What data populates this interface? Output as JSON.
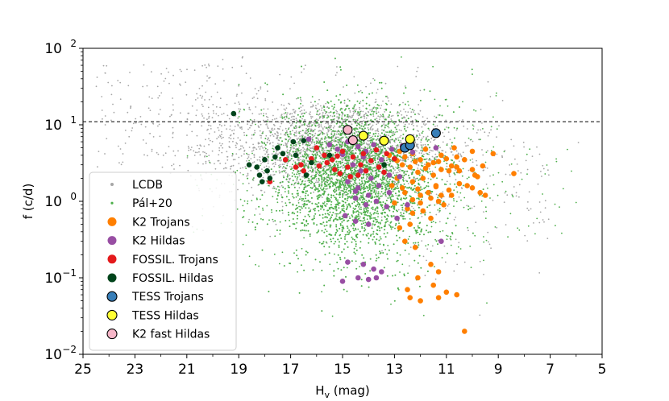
{
  "chart_data": {
    "type": "scatter",
    "title": "",
    "xlabel": "H",
    "xlabel_sub": "v",
    "xlabel_unit": " (mag)",
    "ylabel": "f (c/d)",
    "x_inverted": true,
    "xlim": [
      25,
      5
    ],
    "ylim": [
      0.01,
      100
    ],
    "yscale": "log",
    "grid": false,
    "x_ticks": [
      {
        "value": 25,
        "label": "25"
      },
      {
        "value": 23,
        "label": "23"
      },
      {
        "value": 21,
        "label": "21"
      },
      {
        "value": 19,
        "label": "19"
      },
      {
        "value": 17,
        "label": "17"
      },
      {
        "value": 15,
        "label": "15"
      },
      {
        "value": 13,
        "label": "13"
      },
      {
        "value": 11,
        "label": "11"
      },
      {
        "value": 9,
        "label": "9"
      },
      {
        "value": 7,
        "label": "7"
      },
      {
        "value": 5,
        "label": "5"
      }
    ],
    "y_ticks": [
      {
        "value": 0.01,
        "base": "10",
        "exp": "−2"
      },
      {
        "value": 0.1,
        "base": "10",
        "exp": "−1"
      },
      {
        "value": 1,
        "base": "10",
        "exp": "0"
      },
      {
        "value": 10,
        "base": "10",
        "exp": "1"
      },
      {
        "value": 100,
        "base": "10",
        "exp": "2"
      }
    ],
    "reference_line": {
      "y": 11,
      "style": "dashed",
      "color": "#000000"
    },
    "legend_position": "lower-left",
    "background_series": [
      {
        "name": "LCDB",
        "color": "#a6a6a6",
        "note": "dense gray cloud, peak near Hv 14-16, f ~ 1-10 c/d"
      },
      {
        "name": "Pál+20",
        "color": "#4daf4a",
        "note": "dense green cloud, Hv 12-18, f ~ 0.03-10 c/d"
      }
    ],
    "series": [
      {
        "name": "K2 Trojans",
        "color": "#ff7f00",
        "edge": "none",
        "points": [
          [
            12.8,
            4.5
          ],
          [
            12.6,
            3.8
          ],
          [
            12.3,
            4.2
          ],
          [
            12.0,
            3.5
          ],
          [
            11.8,
            4.8
          ],
          [
            11.5,
            3.2
          ],
          [
            11.2,
            4.0
          ],
          [
            11.0,
            3.6
          ],
          [
            10.6,
            3.8
          ],
          [
            10.3,
            3.5
          ],
          [
            10.0,
            2.6
          ],
          [
            9.6,
            2.9
          ],
          [
            9.2,
            4.2
          ],
          [
            8.4,
            2.3
          ],
          [
            12.7,
            3.0
          ],
          [
            12.4,
            2.8
          ],
          [
            12.1,
            2.4
          ],
          [
            11.8,
            2.7
          ],
          [
            11.5,
            2.2
          ],
          [
            11.2,
            2.6
          ],
          [
            10.9,
            2.5
          ],
          [
            10.6,
            2.8
          ],
          [
            12.9,
            2.0
          ],
          [
            12.3,
            1.8
          ],
          [
            11.9,
            2.0
          ],
          [
            11.4,
            1.6
          ],
          [
            10.9,
            1.4
          ],
          [
            10.5,
            1.7
          ],
          [
            10.0,
            1.5
          ],
          [
            9.7,
            1.3
          ],
          [
            9.5,
            1.2
          ],
          [
            12.6,
            1.3
          ],
          [
            12.0,
            1.2
          ],
          [
            11.6,
            1.1
          ],
          [
            11.3,
            1.0
          ],
          [
            13.0,
            0.95
          ],
          [
            12.5,
            0.8
          ],
          [
            12.3,
            0.7
          ],
          [
            11.9,
            0.75
          ],
          [
            11.6,
            0.6
          ],
          [
            12.8,
            0.45
          ],
          [
            12.4,
            0.5
          ],
          [
            12.6,
            0.3
          ],
          [
            12.2,
            0.25
          ],
          [
            11.6,
            0.15
          ],
          [
            11.3,
            0.12
          ],
          [
            12.1,
            0.1
          ],
          [
            11.5,
            0.08
          ],
          [
            11.0,
            0.065
          ],
          [
            10.6,
            0.06
          ],
          [
            12.5,
            0.07
          ],
          [
            12.0,
            0.05
          ],
          [
            12.4,
            0.055
          ],
          [
            11.3,
            0.055
          ],
          [
            10.3,
            0.02
          ],
          [
            13.1,
            1.6
          ],
          [
            12.9,
            3.4
          ],
          [
            12.2,
            3.3
          ],
          [
            11.7,
            3.0
          ],
          [
            11.3,
            3.3
          ],
          [
            10.8,
            2.9
          ],
          [
            10.5,
            2.5
          ],
          [
            10.2,
            1.6
          ],
          [
            9.9,
            2.2
          ],
          [
            12.7,
            1.5
          ],
          [
            12.1,
            1.45
          ],
          [
            11.4,
            1.55
          ],
          [
            13.2,
            4.0
          ],
          [
            12.5,
            5.2
          ],
          [
            10.7,
            5.0
          ],
          [
            10.0,
            4.5
          ],
          [
            9.8,
            2.1
          ],
          [
            11.2,
            1.2
          ],
          [
            11.7,
            1.3
          ],
          [
            12.3,
            1.05
          ],
          [
            12.0,
            0.95
          ],
          [
            11.1,
            0.9
          ],
          [
            10.8,
            1.2
          ]
        ]
      },
      {
        "name": "K2 Hildas",
        "color": "#984ea3",
        "edge": "none",
        "points": [
          [
            16.3,
            6.5
          ],
          [
            15.5,
            5.5
          ],
          [
            15.2,
            4.8
          ],
          [
            14.8,
            6.0
          ],
          [
            14.4,
            5.2
          ],
          [
            14.1,
            4.5
          ],
          [
            13.8,
            5.5
          ],
          [
            13.5,
            3.5
          ],
          [
            13.1,
            4.8
          ],
          [
            12.7,
            5.3
          ],
          [
            12.3,
            4.4
          ],
          [
            11.4,
            5.0
          ],
          [
            14.6,
            3.0
          ],
          [
            14.3,
            2.5
          ],
          [
            13.9,
            2.0
          ],
          [
            13.6,
            2.8
          ],
          [
            14.8,
            1.8
          ],
          [
            14.4,
            1.5
          ],
          [
            14.0,
            1.2
          ],
          [
            13.6,
            1.6
          ],
          [
            13.2,
            1.3
          ],
          [
            14.5,
            1.1
          ],
          [
            14.1,
            0.9
          ],
          [
            13.7,
            1.0
          ],
          [
            13.3,
            0.85
          ],
          [
            12.9,
            0.6
          ],
          [
            14.9,
            0.65
          ],
          [
            14.5,
            0.55
          ],
          [
            14.0,
            0.5
          ],
          [
            12.5,
            0.9
          ],
          [
            11.2,
            0.3
          ],
          [
            14.8,
            0.16
          ],
          [
            14.2,
            0.15
          ],
          [
            13.8,
            0.13
          ],
          [
            13.5,
            0.12
          ],
          [
            14.4,
            0.1
          ],
          [
            14.0,
            0.095
          ],
          [
            15.0,
            0.09
          ],
          [
            13.7,
            0.1
          ],
          [
            14.5,
            1.35
          ],
          [
            13.2,
            2.2
          ],
          [
            12.8,
            2.1
          ],
          [
            14.2,
            3.8
          ],
          [
            15.0,
            4.1
          ]
        ]
      },
      {
        "name": "FOSSIL. Trojans",
        "color": "#e41a1c",
        "edge": "none",
        "points": [
          [
            17.8,
            1.8
          ],
          [
            17.2,
            3.5
          ],
          [
            16.8,
            2.8
          ],
          [
            16.5,
            2.5
          ],
          [
            16.2,
            3.6
          ],
          [
            15.9,
            2.9
          ],
          [
            15.6,
            3.2
          ],
          [
            15.3,
            2.6
          ],
          [
            15.1,
            2.3
          ],
          [
            14.8,
            2.8
          ],
          [
            14.6,
            3.8
          ],
          [
            14.3,
            3.0
          ],
          [
            14.1,
            2.5
          ],
          [
            13.9,
            3.4
          ],
          [
            13.6,
            2.8
          ],
          [
            13.3,
            4.2
          ],
          [
            13.0,
            3.6
          ],
          [
            15.7,
            4.0
          ],
          [
            15.4,
            3.5
          ],
          [
            14.7,
            2.1
          ],
          [
            14.4,
            2.2
          ],
          [
            16.0,
            5.0
          ],
          [
            15.0,
            4.5
          ],
          [
            13.7,
            4.7
          ],
          [
            13.4,
            2.4
          ],
          [
            16.6,
            3.0
          ],
          [
            15.2,
            3.9
          ],
          [
            14.2,
            4.2
          ]
        ]
      },
      {
        "name": "FOSSIL. Hildas",
        "color": "#00441b",
        "edge": "none",
        "points": [
          [
            19.2,
            14.0
          ],
          [
            18.6,
            3.0
          ],
          [
            18.3,
            2.8
          ],
          [
            18.2,
            2.2
          ],
          [
            18.1,
            1.8
          ],
          [
            18.0,
            3.5
          ],
          [
            17.9,
            2.5
          ],
          [
            17.6,
            3.8
          ],
          [
            17.5,
            5.0
          ],
          [
            17.3,
            4.2
          ],
          [
            16.9,
            6.0
          ],
          [
            16.5,
            6.2
          ],
          [
            16.2,
            3.2
          ],
          [
            15.5,
            4.0
          ],
          [
            13.4,
            3.0
          ],
          [
            16.8,
            4.0
          ],
          [
            17.8,
            2.0
          ],
          [
            16.4,
            2.2
          ]
        ]
      },
      {
        "name": "TESS Trojans",
        "color": "#377eb8",
        "edge": "#000000",
        "points": [
          [
            12.6,
            5.0
          ],
          [
            12.4,
            5.4
          ],
          [
            11.4,
            7.8
          ]
        ]
      },
      {
        "name": "TESS Hildas",
        "color": "#ffff33",
        "edge": "#000000",
        "points": [
          [
            14.2,
            7.2
          ],
          [
            13.4,
            6.2
          ],
          [
            12.4,
            6.5
          ]
        ]
      },
      {
        "name": "K2 fast Hildas",
        "color": "#f7b6c8",
        "edge": "#000000",
        "points": [
          [
            14.8,
            8.6
          ],
          [
            14.6,
            6.3
          ]
        ]
      }
    ]
  }
}
